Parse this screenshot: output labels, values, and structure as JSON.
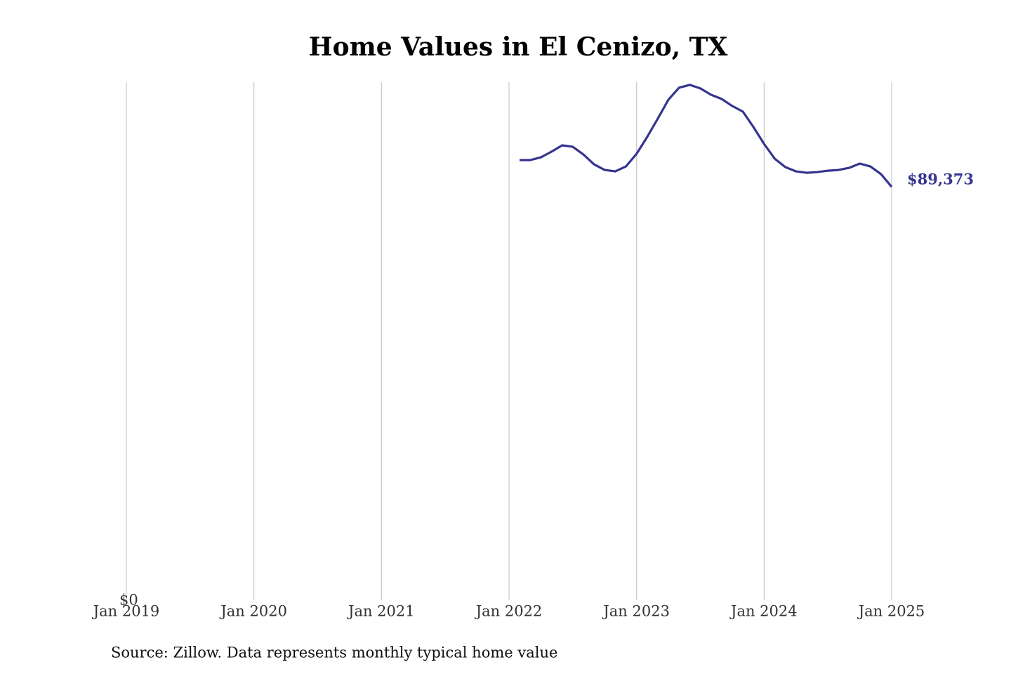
{
  "chart_data": {
    "type": "line",
    "title": "Home Values in El Cenizo, TX",
    "source": "Source: Zillow. Data represents monthly typical home value",
    "x": [
      "2022-02",
      "2022-03",
      "2022-04",
      "2022-05",
      "2022-06",
      "2022-07",
      "2022-08",
      "2022-09",
      "2022-10",
      "2022-11",
      "2022-12",
      "2023-01",
      "2023-02",
      "2023-03",
      "2023-04",
      "2023-05",
      "2023-06",
      "2023-07",
      "2023-08",
      "2023-09",
      "2023-10",
      "2023-11",
      "2023-12",
      "2024-01",
      "2024-02",
      "2024-03",
      "2024-04",
      "2024-05",
      "2024-06",
      "2024-07",
      "2024-08",
      "2024-09",
      "2024-10",
      "2024-11",
      "2024-12",
      "2025-01"
    ],
    "series": [
      {
        "name": "El Cenizo, TX",
        "color": "#35348f",
        "values": [
          95150,
          95150,
          95750,
          96970,
          98340,
          98030,
          96360,
          94230,
          93020,
          92710,
          93780,
          96510,
          100160,
          104110,
          108220,
          110800,
          111410,
          110650,
          109280,
          108370,
          106850,
          105630,
          102290,
          98640,
          95450,
          93630,
          92710,
          92410,
          92560,
          92860,
          93020,
          93470,
          94390,
          93780,
          92100,
          89373
        ],
        "value_labels": [
          null,
          null,
          null,
          null,
          null,
          null,
          null,
          null,
          null,
          null,
          null,
          null,
          null,
          null,
          null,
          null,
          null,
          null,
          null,
          null,
          null,
          null,
          null,
          null,
          null,
          null,
          null,
          null,
          null,
          null,
          null,
          null,
          null,
          null,
          null,
          "$89,373"
        ]
      }
    ],
    "xlim": [
      "2019-01",
      "2025-01"
    ],
    "xticks": [
      {
        "value": "2019-01",
        "label": "Jan 2019"
      },
      {
        "value": "2020-01",
        "label": "Jan 2020"
      },
      {
        "value": "2021-01",
        "label": "Jan 2021"
      },
      {
        "value": "2022-01",
        "label": "Jan 2022"
      },
      {
        "value": "2023-01",
        "label": "Jan 2023"
      },
      {
        "value": "2024-01",
        "label": "Jan 2024"
      },
      {
        "value": "2025-01",
        "label": "Jan 2025"
      }
    ],
    "ylim": [
      0,
      112000
    ],
    "yticks": [
      {
        "value": 0,
        "label": "$0"
      }
    ],
    "grid": "x"
  }
}
